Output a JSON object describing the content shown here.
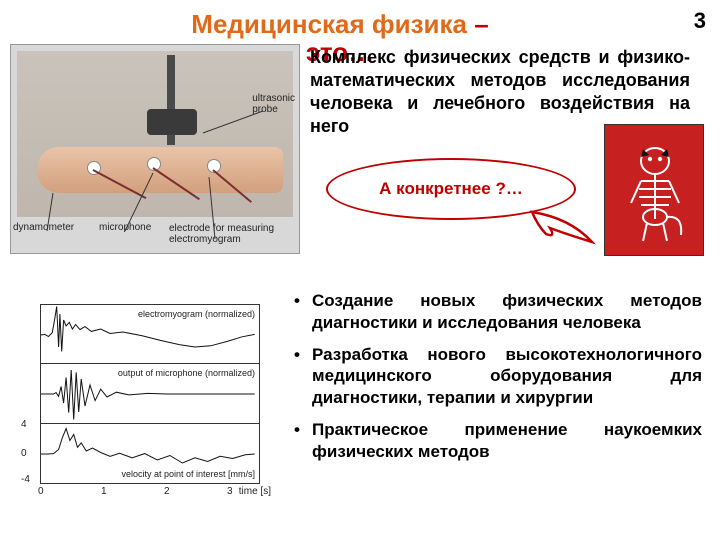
{
  "page_number": "3",
  "title": {
    "part1": "Медицинская физика",
    "dash": " – ",
    "part2": "это…",
    "colors": {
      "main": "#e06a1a",
      "accent": "#c00000"
    }
  },
  "main_paragraph": "Комплекс физических средств и физико-математических методов исследования человека и лечебного воздействия на него",
  "callout": {
    "text": "А конкретнее ?…",
    "border_color": "#c00000",
    "text_color": "#c00000"
  },
  "cat_card": {
    "bg_color": "#c62020"
  },
  "photo": {
    "labels": {
      "ultrasonic_probe": "ultrasonic\nprobe",
      "dynamometer": "dynamometer",
      "microphone": "microphone",
      "electrode": "electrode for measuring\nelectromyogram"
    },
    "line_colors": {
      "leader": "#333333"
    }
  },
  "bullets": [
    "Создание новых физических методов диагностики и исследования человека",
    "Разработка нового высокотехнологичного медицинского оборудования для диагностики, терапии и хирургии",
    "Практическое применение наукоемких физических методов"
  ],
  "charts": {
    "x": {
      "ticks": [
        0,
        1,
        2,
        3
      ],
      "label": "time [s]",
      "lim": [
        0,
        3.5
      ]
    },
    "panels": [
      {
        "label": "electromyogram (normalized)",
        "ylim": [
          -1,
          1
        ],
        "series": [
          [
            0,
            0.0
          ],
          [
            0.06,
            0.02
          ],
          [
            0.12,
            -0.05
          ],
          [
            0.18,
            0.08
          ],
          [
            0.22,
            0.55
          ],
          [
            0.25,
            0.95
          ],
          [
            0.28,
            -0.4
          ],
          [
            0.3,
            0.7
          ],
          [
            0.33,
            -0.55
          ],
          [
            0.36,
            0.5
          ],
          [
            0.4,
            0.3
          ],
          [
            0.45,
            0.42
          ],
          [
            0.5,
            0.2
          ],
          [
            0.55,
            0.35
          ],
          [
            0.62,
            0.18
          ],
          [
            0.7,
            0.28
          ],
          [
            0.8,
            0.12
          ],
          [
            0.95,
            0.2
          ],
          [
            1.1,
            0.05
          ],
          [
            1.3,
            0.1
          ],
          [
            1.6,
            -0.02
          ],
          [
            1.9,
            -0.18
          ],
          [
            2.2,
            -0.32
          ],
          [
            2.45,
            -0.4
          ],
          [
            2.7,
            -0.36
          ],
          [
            2.95,
            -0.22
          ],
          [
            3.2,
            -0.06
          ],
          [
            3.4,
            0.02
          ]
        ]
      },
      {
        "label": "output of microphone (normalized)",
        "ylim": [
          -1,
          1
        ],
        "series": [
          [
            0,
            0
          ],
          [
            0.2,
            0
          ],
          [
            0.24,
            0.05
          ],
          [
            0.28,
            -0.08
          ],
          [
            0.32,
            0.25
          ],
          [
            0.36,
            -0.3
          ],
          [
            0.4,
            0.55
          ],
          [
            0.44,
            -0.62
          ],
          [
            0.48,
            0.8
          ],
          [
            0.52,
            -0.85
          ],
          [
            0.56,
            0.72
          ],
          [
            0.6,
            -0.6
          ],
          [
            0.64,
            0.5
          ],
          [
            0.7,
            -0.4
          ],
          [
            0.78,
            0.3
          ],
          [
            0.86,
            -0.22
          ],
          [
            0.95,
            0.16
          ],
          [
            1.05,
            -0.1
          ],
          [
            1.2,
            0.06
          ],
          [
            1.4,
            -0.03
          ],
          [
            1.7,
            0.02
          ],
          [
            2.0,
            0
          ],
          [
            2.5,
            0
          ],
          [
            3.0,
            0
          ],
          [
            3.4,
            0
          ]
        ]
      },
      {
        "label": "velocity at point of interest [mm/s]",
        "ylim": [
          -4,
          4
        ],
        "yticks": [
          -4,
          0,
          4
        ],
        "series": [
          [
            0,
            0
          ],
          [
            0.1,
            0
          ],
          [
            0.2,
            0.05
          ],
          [
            0.28,
            0.6
          ],
          [
            0.34,
            2.2
          ],
          [
            0.4,
            3.4
          ],
          [
            0.46,
            1.8
          ],
          [
            0.52,
            2.6
          ],
          [
            0.58,
            0.9
          ],
          [
            0.64,
            1.5
          ],
          [
            0.72,
            0.4
          ],
          [
            0.82,
            0.8
          ],
          [
            0.95,
            0.2
          ],
          [
            1.1,
            -0.3
          ],
          [
            1.25,
            0.1
          ],
          [
            1.45,
            -0.5
          ],
          [
            1.65,
            0.05
          ],
          [
            1.85,
            -0.8
          ],
          [
            2.05,
            -0.2
          ],
          [
            2.25,
            -1.2
          ],
          [
            2.45,
            -0.5
          ],
          [
            2.65,
            -1.0
          ],
          [
            2.85,
            -0.3
          ],
          [
            3.05,
            -0.6
          ],
          [
            3.25,
            -0.1
          ],
          [
            3.4,
            0
          ]
        ]
      }
    ],
    "stroke_color": "#111111",
    "stroke_width": 1
  }
}
